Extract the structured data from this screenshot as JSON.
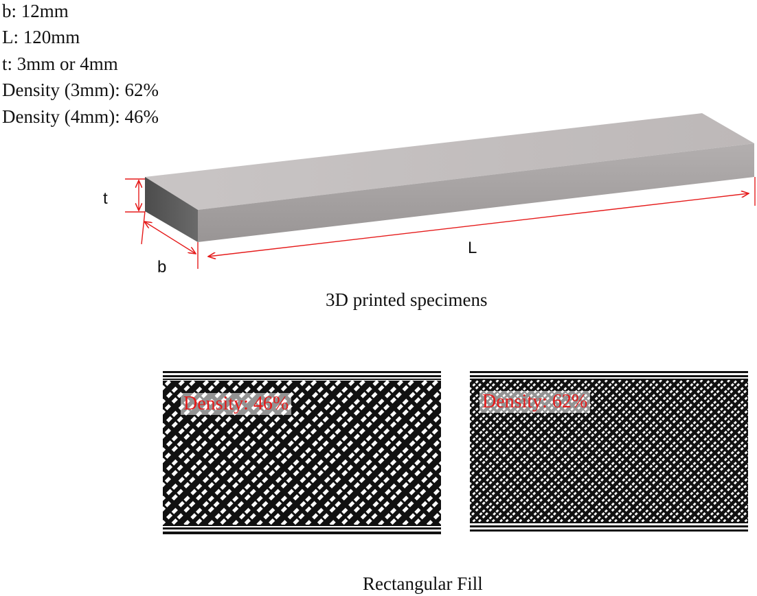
{
  "specs": [
    "b: 12mm",
    "L: 120mm",
    "t: 3mm or 4mm",
    "Density (3mm): 62%",
    "Density (4mm): 46%"
  ],
  "dimensions": {
    "t": "t",
    "b": "b",
    "L": "L"
  },
  "specimen_caption": "3D printed specimens",
  "fills": [
    {
      "label": "Density: 46%",
      "density": 0.46
    },
    {
      "label": "Density: 62%",
      "density": 0.62
    }
  ],
  "fill_caption": "Rectangular Fill",
  "colors": {
    "dimension": "#e51a1a",
    "bar_top": "#c4bfbf",
    "bar_front": "#a6a2a2",
    "bar_end": "#5a5a5a"
  }
}
